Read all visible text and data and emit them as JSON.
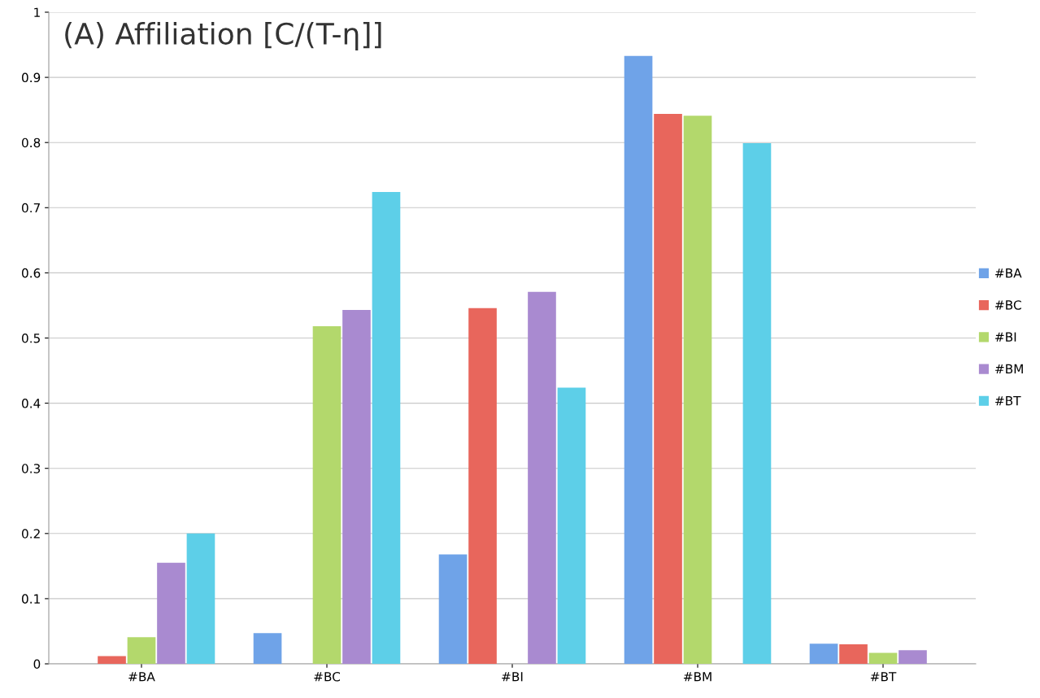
{
  "chart_data": {
    "type": "bar",
    "title": "(A) Affiliation [C/(T-η]]",
    "categories": [
      "#BA",
      "#BC",
      "#BI",
      "#BM",
      "#BT"
    ],
    "series": [
      {
        "name": "#BA",
        "color": "#6fa3e8",
        "values": [
          0,
          0.047,
          0.168,
          0.933,
          0.031
        ]
      },
      {
        "name": "#BC",
        "color": "#e8665c",
        "values": [
          0.012,
          0,
          0.546,
          0.844,
          0.03
        ]
      },
      {
        "name": "#BI",
        "color": "#b3d86c",
        "values": [
          0.041,
          0.518,
          0,
          0.841,
          0.017
        ]
      },
      {
        "name": "#BM",
        "color": "#a98ad0",
        "values": [
          0.155,
          0.543,
          0.571,
          0,
          0.021
        ]
      },
      {
        "name": "#BT",
        "color": "#5dcfe8",
        "values": [
          0.2,
          0.724,
          0.424,
          0.799,
          0
        ]
      }
    ],
    "ylim": [
      0,
      1
    ],
    "yticks": [
      0,
      0.1,
      0.2,
      0.3,
      0.4,
      0.5,
      0.6,
      0.7,
      0.8,
      0.9,
      1
    ],
    "grid": "y",
    "legend": "right"
  }
}
